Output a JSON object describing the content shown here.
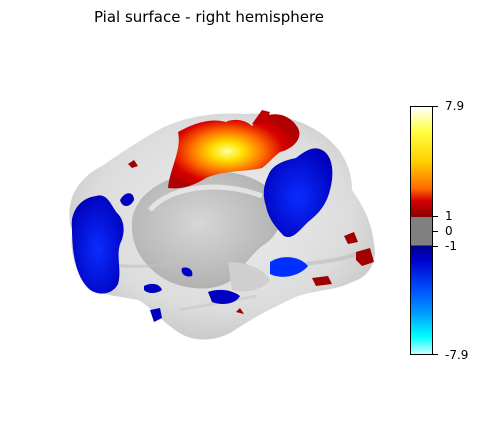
{
  "title": "Pial surface - right hemisphere",
  "colorbar": {
    "max_label": "7.9",
    "pos_threshold_label": "1",
    "zero_label": "0",
    "neg_threshold_label": "-1",
    "min_label": "-7.9",
    "positive_colors": [
      "#8b0000",
      "#d40000",
      "#ff6a00",
      "#ffd000",
      "#ffff40",
      "#ffffff"
    ],
    "negative_colors": [
      "#00008b",
      "#0000d0",
      "#0050ff",
      "#00a0ff",
      "#00ffff",
      "#c8ffff"
    ],
    "threshold_color": "#808080"
  },
  "surface_colors": {
    "cortex_light": "#e6e6e6",
    "cortex_medial": "#bdbdbd",
    "activation_positive": "#d40000",
    "activation_peak": "#ffe800",
    "activation_negative": "#0000c8"
  }
}
